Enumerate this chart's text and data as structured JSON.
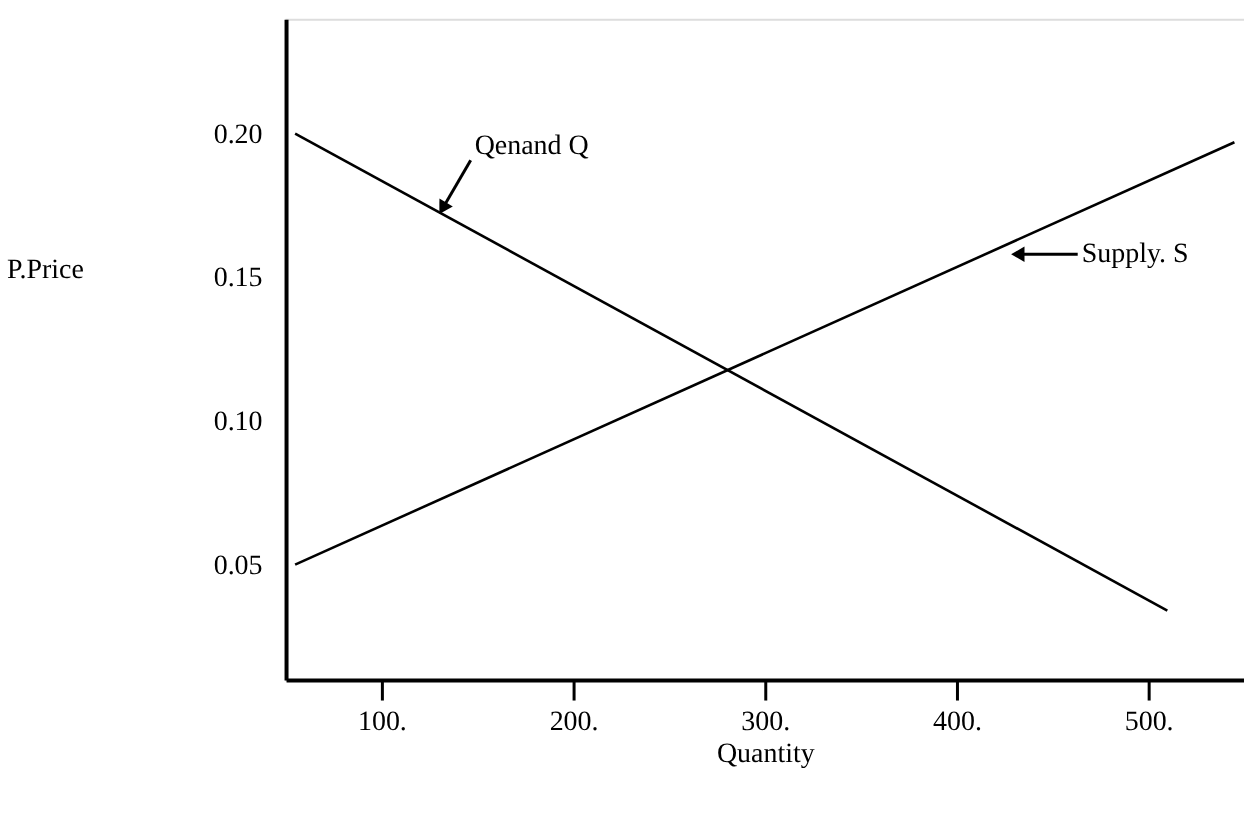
{
  "chart_data": {
    "type": "line",
    "xlabel": "Quantity",
    "ylabel": "P.Price",
    "series": [
      {
        "x": [
          55,
          510
        ],
        "values": [
          0.2,
          0.034
        ],
        "color": "#000000"
      },
      {
        "x": [
          55,
          545
        ],
        "values": [
          0.05,
          0.197
        ],
        "color": "#000000"
      }
    ],
    "xlim": [
      50,
      550
    ],
    "ylim": [
      0.01,
      0.24
    ],
    "xticks": [
      {
        "value": 100,
        "label": "100."
      },
      {
        "value": 200,
        "label": "200."
      },
      {
        "value": 300,
        "label": "300."
      },
      {
        "value": 400,
        "label": "400."
      },
      {
        "value": 500,
        "label": "500."
      }
    ],
    "yticks": [
      {
        "value": 0.05,
        "label": "0.05"
      },
      {
        "value": 0.1,
        "label": "0.10"
      },
      {
        "value": 0.15,
        "label": "0.15"
      },
      {
        "value": 0.2,
        "label": "0.20"
      }
    ],
    "annotations": [
      {
        "text": "Qenand Q",
        "x": 132,
        "y": 0.174
      },
      {
        "text": "Supply. S",
        "x": 432,
        "y": 0.158
      }
    ],
    "grid": false,
    "marker": "none",
    "line_style": "solid"
  }
}
